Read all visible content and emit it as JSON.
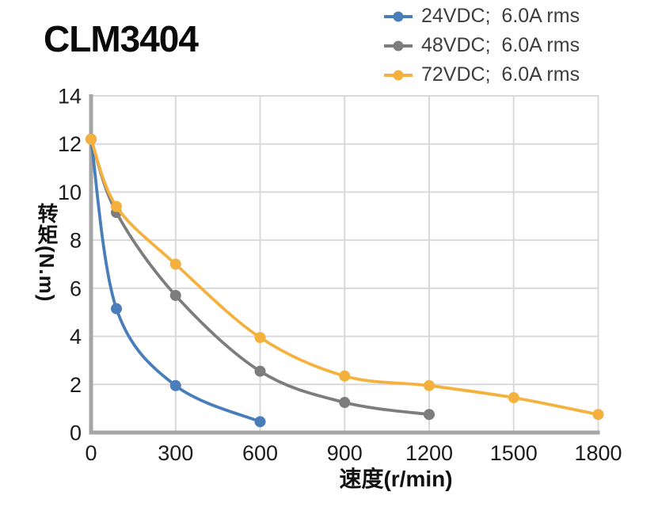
{
  "page": {
    "title": "CLM3404"
  },
  "chart_data": {
    "type": "line",
    "title": "CLM3404",
    "xlabel": "速度(r/min)",
    "ylabel": "转矩(N.m)",
    "xlim": [
      0,
      1800
    ],
    "ylim": [
      0,
      14
    ],
    "x_ticks": [
      0,
      300,
      600,
      900,
      1200,
      1500,
      1800
    ],
    "y_ticks": [
      0,
      2,
      4,
      6,
      8,
      10,
      12,
      14
    ],
    "grid": true,
    "legend_position": "top-right",
    "grid_color": "#d9d9d9",
    "axis_color": "#a6a6a6",
    "series": [
      {
        "name": "24VDC;  6.0A rms",
        "color": "#4A7EBB",
        "points": [
          [
            0,
            12.2
          ],
          [
            90,
            5.15
          ],
          [
            300,
            1.95
          ],
          [
            600,
            0.45
          ]
        ]
      },
      {
        "name": "48VDC;  6.0A rms",
        "color": "#7D7D7D",
        "points": [
          [
            0,
            12.2
          ],
          [
            90,
            9.15
          ],
          [
            300,
            5.7
          ],
          [
            600,
            2.55
          ],
          [
            900,
            1.25
          ],
          [
            1200,
            0.75
          ]
        ]
      },
      {
        "name": "72VDC;  6.0A rms",
        "color": "#F5B13D",
        "points": [
          [
            0,
            12.2
          ],
          [
            90,
            9.4
          ],
          [
            300,
            7.0
          ],
          [
            600,
            3.95
          ],
          [
            900,
            2.35
          ],
          [
            1200,
            1.95
          ],
          [
            1500,
            1.45
          ],
          [
            1800,
            0.75
          ]
        ]
      }
    ]
  }
}
